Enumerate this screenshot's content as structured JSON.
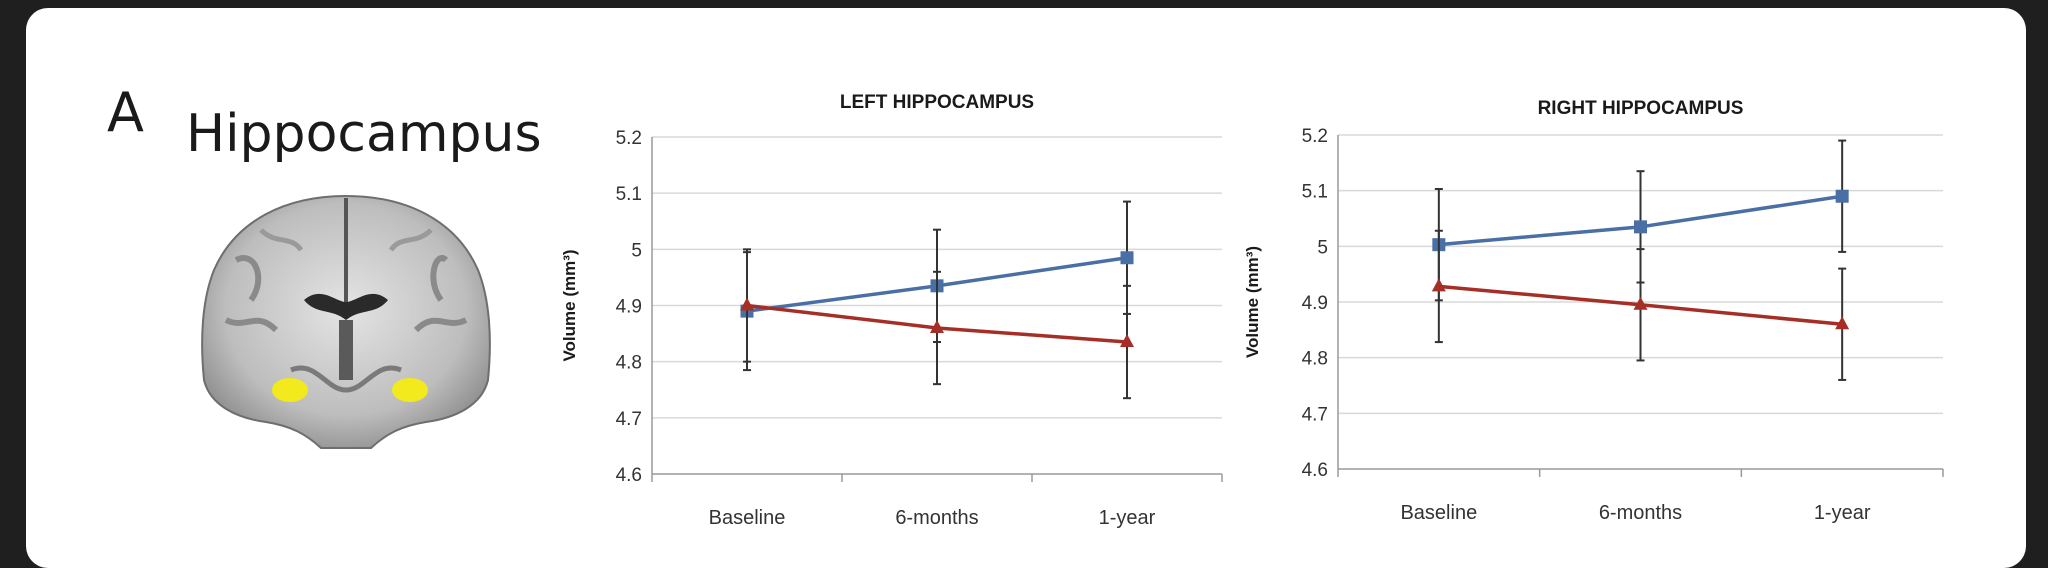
{
  "panel": {
    "letter": "A",
    "title": "Hippocampus",
    "image_icon": "brain-coronal-slice-icon",
    "highlight_color": "#f2ea1c"
  },
  "chart_data": [
    {
      "type": "line",
      "title": "LEFT HIPPOCAMPUS",
      "xlabel": "",
      "ylabel": "Volume (mm³)",
      "categories": [
        "Baseline",
        "6-months",
        "1-year"
      ],
      "ylim": [
        4.6,
        5.2
      ],
      "yticks": [
        "4.6",
        "4.7",
        "4.8",
        "4.9",
        "5",
        "5.1",
        "5.2"
      ],
      "grid": true,
      "series": [
        {
          "color": "#4a6fa5",
          "marker": "square",
          "values": [
            4.89,
            4.935,
            4.985
          ],
          "error": [
            0.105,
            0.1,
            0.1
          ]
        },
        {
          "color": "#a52f27",
          "marker": "triangle",
          "values": [
            4.9,
            4.86,
            4.835
          ],
          "error": [
            0.1,
            0.1,
            0.1
          ]
        }
      ]
    },
    {
      "type": "line",
      "title": "RIGHT HIPPOCAMPUS",
      "xlabel": "",
      "ylabel": "Volume (mm³)",
      "categories": [
        "Baseline",
        "6-months",
        "1-year"
      ],
      "ylim": [
        4.6,
        5.2
      ],
      "yticks": [
        "4.6",
        "4.7",
        "4.8",
        "4.9",
        "5",
        "5.1",
        "5.2"
      ],
      "grid": true,
      "series": [
        {
          "color": "#4a6fa5",
          "marker": "square",
          "values": [
            5.003,
            5.035,
            5.09
          ],
          "error": [
            0.1,
            0.1,
            0.1
          ]
        },
        {
          "color": "#a52f27",
          "marker": "triangle",
          "values": [
            4.928,
            4.895,
            4.86
          ],
          "error": [
            0.1,
            0.1,
            0.1
          ]
        }
      ]
    }
  ]
}
